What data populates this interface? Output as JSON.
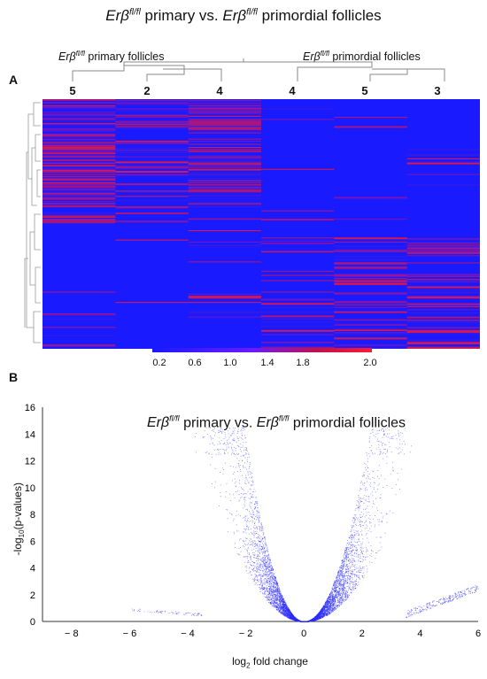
{
  "figure": {
    "top_title": {
      "pre": "Erβ",
      "sup": "fl/fl",
      "mid": " primary  vs. ",
      "pre2": "Erβ",
      "sup2": "fl/fl",
      "post": " primordial follicles"
    },
    "panel_a": "A",
    "panel_b": "B"
  },
  "chart_data": [
    {
      "type": "heatmap",
      "group_labels": [
        {
          "pre": "Erβ",
          "sup": "fl/fl",
          "post": " primary follicles"
        },
        {
          "pre": "Erβ",
          "sup": "fl/fl",
          "post": " primordial follicles"
        }
      ],
      "columns": [
        "5",
        "2",
        "4",
        "4",
        "5",
        "3"
      ],
      "colorbar_ticks": [
        "0.2",
        "0.6",
        "1.0",
        "1.4",
        "1.8",
        "2.0"
      ],
      "colorbar_range": [
        0.2,
        2.0
      ],
      "colors": {
        "low": "#1a1aff",
        "high": "#ff1a33"
      }
    },
    {
      "type": "scatter",
      "title": {
        "pre": "Erβ",
        "sup": "fl/fl",
        "mid": " primary  vs. ",
        "pre2": "Erβ",
        "sup2": "fl/fl",
        "post": "  primordial follicles"
      },
      "xlabel": {
        "pre": "log",
        "sub": "2",
        "post": " fold change"
      },
      "ylabel": {
        "pre": "-log",
        "sub": "10",
        "post": "(p-values)"
      },
      "xlim": [
        -9,
        6
      ],
      "ylim": [
        0,
        16
      ],
      "xticks": [
        "− 8",
        "− 6",
        "− 4",
        "− 2",
        "0",
        "2",
        "4",
        "6"
      ],
      "xtick_values": [
        -8,
        -6,
        -4,
        -2,
        0,
        2,
        4,
        6
      ],
      "yticks": [
        "0",
        "2",
        "4",
        "6",
        "8",
        "10",
        "12",
        "14",
        "16"
      ],
      "ytick_values": [
        0,
        2,
        4,
        6,
        8,
        10,
        12,
        14,
        16
      ],
      "point_color": "#2b2bff"
    }
  ]
}
